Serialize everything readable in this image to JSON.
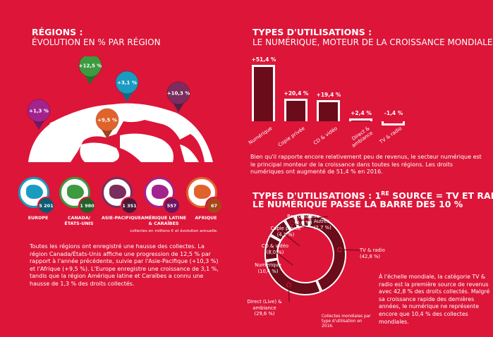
{
  "left": {
    "title_line1": "RÉGIONS :",
    "title_line2": "ÉVOLUTION EN % PAR RÉGION",
    "pins": [
      {
        "label": "+1,3 %",
        "region": "Amérique latine & Caraïbes",
        "color": "#a3238e"
      },
      {
        "label": "+12,5 %",
        "region": "Canada/États-Unis",
        "color": "#3d9a3f"
      },
      {
        "label": "+3,1 %",
        "region": "Europe",
        "color": "#1a9bc0"
      },
      {
        "label": "+10,3 %",
        "region": "Asie-Pacifique",
        "color": "#7a2d5e"
      },
      {
        "label": "+9,5 %",
        "region": "Afrique",
        "color": "#e0632b"
      }
    ],
    "regions": [
      {
        "name": "EUROPE",
        "value": "5 201",
        "color": "#1a9bc0",
        "dark": "#0d5c73"
      },
      {
        "name": "CANADA/\nÉTATS-UNIS",
        "value": "1 980",
        "color": "#3d9a3f",
        "dark": "#22612a"
      },
      {
        "name": "ASIE-PACIFIQUE",
        "value": "1 351",
        "color": "#7a2d5e",
        "dark": "#4a1838"
      },
      {
        "name": "AMÉRIQUE LATINE\n& CARAÏBES",
        "value": "557",
        "color": "#a3238e",
        "dark": "#6e1560"
      },
      {
        "name": "AFRIQUE",
        "value": "67",
        "color": "#e0632b",
        "dark": "#a8461b"
      }
    ],
    "note": "collectes en millions € et évolution annuelle.",
    "paragraph": "Toutes les régions ont enregistré une hausse des collectes. La région Canada/États-Unis affiche une progression de 12,5 % par rapport à l'année précédente, suivie par l'Asie-Pacifique (+10,3 %) et l'Afrique (+9,5 %). L'Europe enregistre une croissance de 3,1 %, tandis que la région Amérique latine et Caraïbes a connu une hausse de 1,3 % des droits collectés."
  },
  "right_top": {
    "title_line1": "TYPES D'UTILISATIONS :",
    "title_line2": "LE NUMÉRIQUE, MOTEUR DE LA CROISSANCE MONDIALE",
    "paragraph": "Bien qu'il rapporte encore relativement peu de revenus, le secteur numérique est le principal monteur de la croissance dans toutes les régions. Les droits numériques ont augmenté de 51,4 % en 2016."
  },
  "right_bottom": {
    "title_line1_a": "TYPES D'UTILISATIONS : 1",
    "title_line1_sup": "RE",
    "title_line1_b": " SOURCE = TV ET RADIO,",
    "title_line2": "LE NUMÉRIQUE PASSE LA BARRE DES 10 %",
    "caption": "Collectes mondiales par type d'utilisation en 2016.",
    "paragraph": "À l'échelle mondiale, la catégorie TV & radio est la première source de revenus avec 42,8 % des droits collectés. Malgré sa croissance rapide des dernières années, le numérique ne représente encore que 10,4 % des collectes mondiales."
  },
  "colors": {
    "background": "#dc1539",
    "bar_fill": "#6b0c1b",
    "outline": "#ffffff"
  },
  "chart_data": [
    {
      "type": "bar",
      "categories": [
        "Numérique",
        "Copie privée",
        "CD & vidéo",
        "Direct & ambiance",
        "TV & radio"
      ],
      "values": [
        51.4,
        20.4,
        19.4,
        2.4,
        -1.4
      ],
      "value_labels": [
        "+51,4 %",
        "+20,4 %",
        "+19,4 %",
        "+2,4 %",
        "-1,4 %"
      ]
    },
    {
      "type": "pie",
      "donut": true,
      "categories": [
        "TV & radio",
        "Direct (Live) & ambiance",
        "Numérique",
        "CD & vidéo",
        "Copie privée",
        "Reprographie",
        "Autres"
      ],
      "values": [
        42.8,
        29.6,
        10.4,
        8.0,
        4.1,
        2.4,
        2.7
      ],
      "value_labels": [
        "(42,8 %)",
        "(29,6 %)",
        "(10,4 %)",
        "(8,0 %)",
        "(4,1 %)",
        "(2,4 %)",
        "(2,7 %)"
      ]
    }
  ]
}
